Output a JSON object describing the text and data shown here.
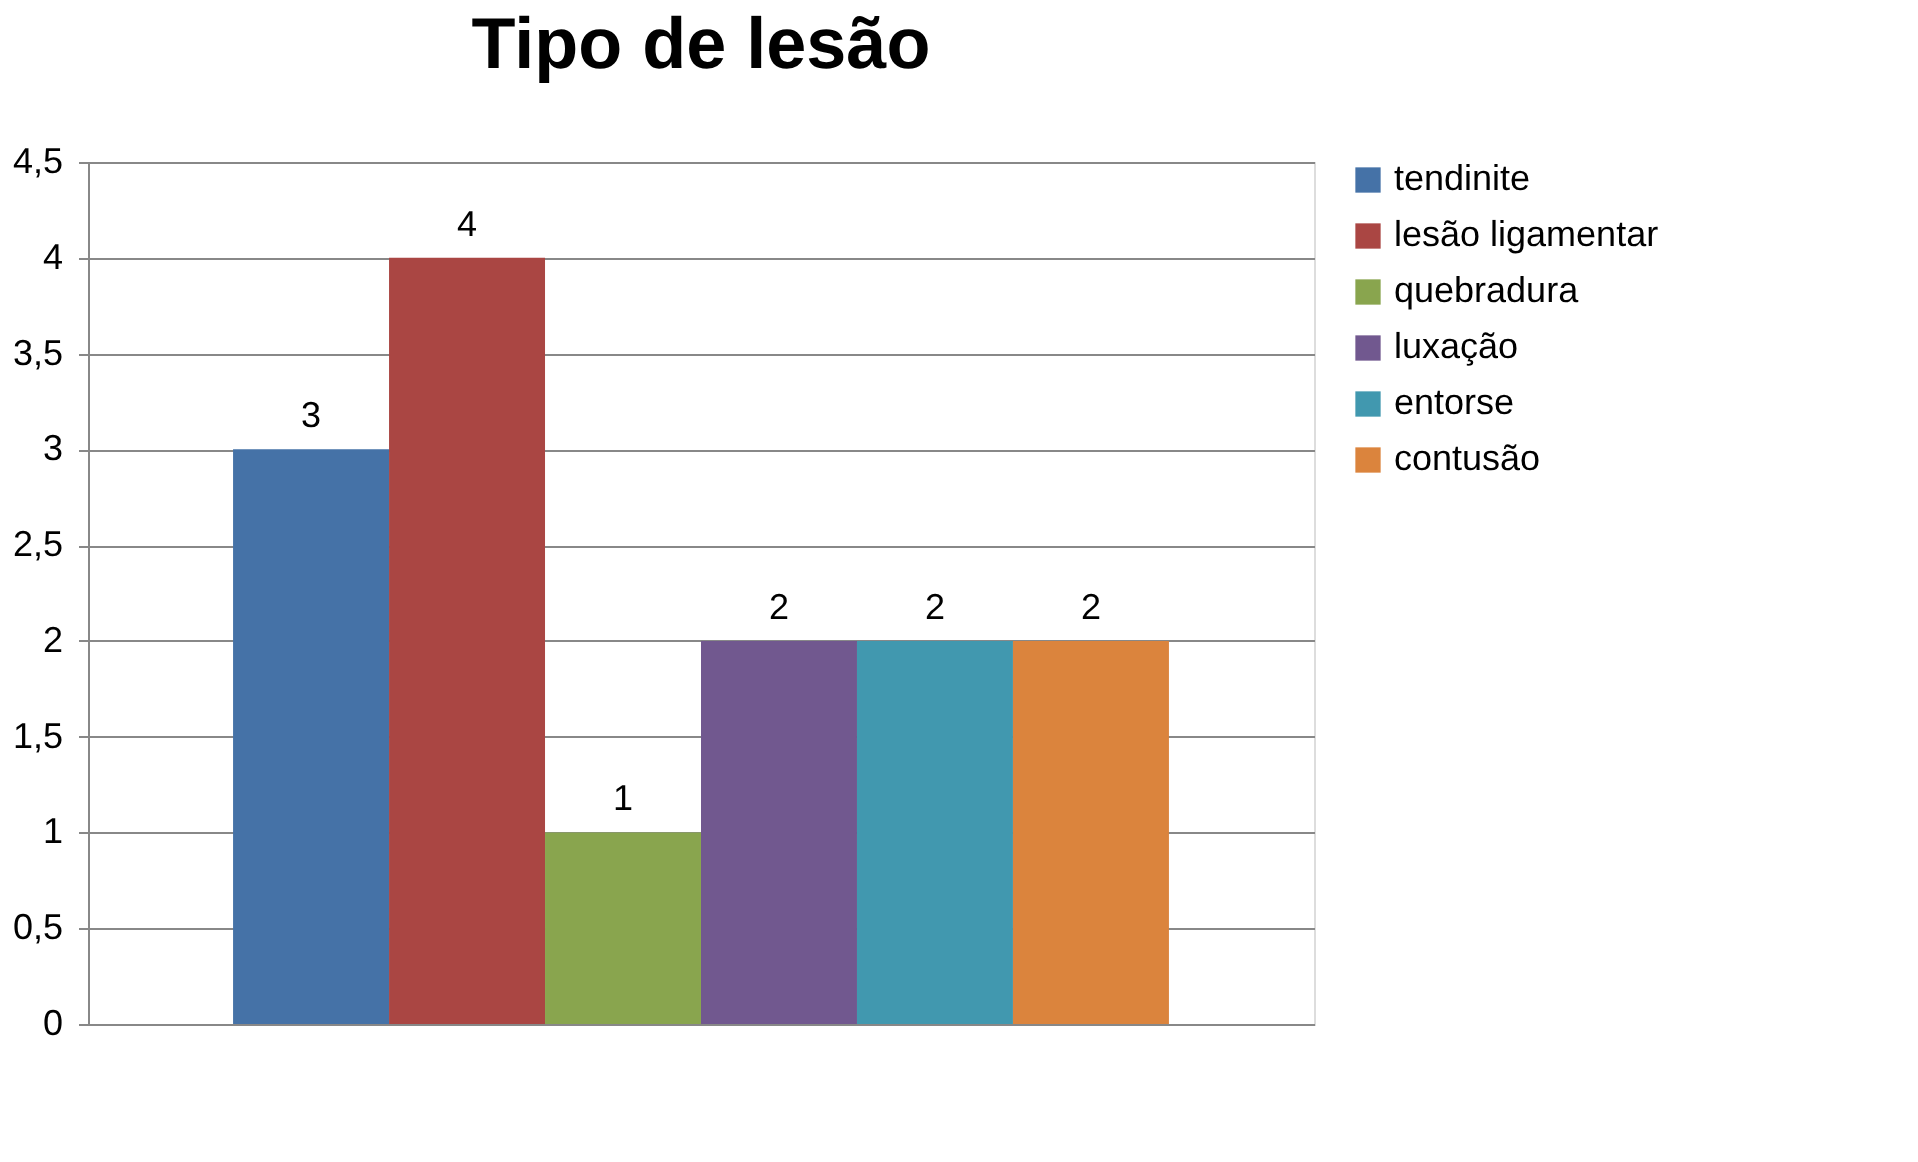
{
  "chart_data": {
    "type": "bar",
    "title": "Tipo de lesão",
    "categories": [
      null
    ],
    "series": [
      {
        "name": "tendinite",
        "color": "#4572a7",
        "values": [
          3
        ]
      },
      {
        "name": "lesão ligamentar",
        "color": "#aa4643",
        "values": [
          4
        ]
      },
      {
        "name": "quebradura",
        "color": "#89a54e",
        "values": [
          1
        ]
      },
      {
        "name": "luxação",
        "color": "#71588f",
        "values": [
          2
        ]
      },
      {
        "name": "entorse",
        "color": "#4198af",
        "values": [
          2
        ]
      },
      {
        "name": "contusão",
        "color": "#db843d",
        "values": [
          2
        ]
      }
    ],
    "ylim": [
      0,
      4.5
    ],
    "yticks": [
      0,
      {
        "value": 0.5,
        "label": "0,5"
      },
      1,
      {
        "value": 1.5,
        "label": "1,5"
      },
      2,
      {
        "value": 2.5,
        "label": "2,5"
      },
      3,
      {
        "value": 3.5,
        "label": "3,5"
      },
      4,
      {
        "value": 4.5,
        "label": "4,5"
      }
    ],
    "grid": "y",
    "legend": "right",
    "data_labels": true,
    "tick_labels": "y"
  }
}
